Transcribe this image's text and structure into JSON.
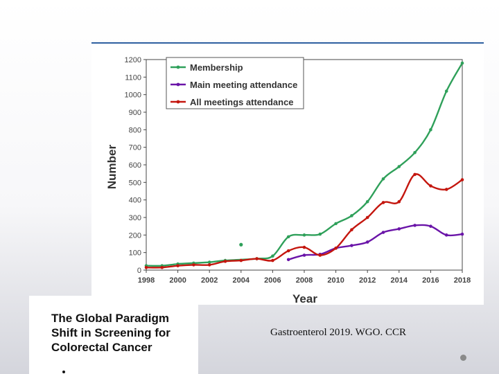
{
  "cover": {
    "title": "The Global Paradigm Shift in Screening for Colorectal Cancer"
  },
  "citation": "Gastroenterol 2019. WGO. CCR",
  "colors": {
    "membership": "#2fa05a",
    "main_meeting": "#6a14a8",
    "all_meetings": "#c4160e",
    "rule": "#2e5fa0"
  },
  "chart_data": {
    "type": "line",
    "title": "",
    "xlabel": "Year",
    "ylabel": "Number",
    "xlim": [
      1998,
      2018
    ],
    "ylim": [
      0,
      1200
    ],
    "xticks": [
      1998,
      2000,
      2002,
      2004,
      2006,
      2008,
      2010,
      2012,
      2014,
      2016,
      2018
    ],
    "yticks": [
      0,
      100,
      200,
      300,
      400,
      500,
      600,
      700,
      800,
      900,
      1000,
      1100,
      1200
    ],
    "legend_position": "top-left",
    "series": [
      {
        "name": "Membership",
        "color": "#2fa05a",
        "points": [
          [
            1998,
            25
          ],
          [
            1999,
            25
          ],
          [
            2000,
            35
          ],
          [
            2001,
            40
          ],
          [
            2002,
            45
          ],
          [
            2003,
            55
          ],
          [
            2005,
            65
          ],
          [
            2006,
            80
          ],
          [
            2007,
            190
          ],
          [
            2008,
            200
          ],
          [
            2009,
            205
          ],
          [
            2010,
            265
          ],
          [
            2011,
            310
          ],
          [
            2012,
            390
          ],
          [
            2013,
            520
          ],
          [
            2014,
            590
          ],
          [
            2015,
            670
          ],
          [
            2016,
            800
          ],
          [
            2017,
            1020
          ],
          [
            2018,
            1180
          ]
        ],
        "outliers": [
          [
            2004,
            145
          ]
        ]
      },
      {
        "name": "Main meeting attendance",
        "color": "#6a14a8",
        "points": [
          [
            2007,
            60
          ],
          [
            2008,
            85
          ],
          [
            2009,
            90
          ],
          [
            2010,
            125
          ],
          [
            2011,
            140
          ],
          [
            2012,
            160
          ],
          [
            2013,
            215
          ],
          [
            2014,
            235
          ],
          [
            2015,
            255
          ],
          [
            2016,
            250
          ],
          [
            2017,
            200
          ],
          [
            2018,
            205
          ]
        ]
      },
      {
        "name": "All meetings attendance",
        "color": "#c4160e",
        "points": [
          [
            1998,
            15
          ],
          [
            1999,
            15
          ],
          [
            2000,
            25
          ],
          [
            2001,
            30
          ],
          [
            2002,
            30
          ],
          [
            2003,
            50
          ],
          [
            2004,
            55
          ],
          [
            2005,
            65
          ],
          [
            2006,
            55
          ],
          [
            2007,
            110
          ],
          [
            2008,
            130
          ],
          [
            2009,
            85
          ],
          [
            2010,
            125
          ],
          [
            2011,
            230
          ],
          [
            2012,
            300
          ],
          [
            2013,
            385
          ],
          [
            2014,
            390
          ],
          [
            2015,
            545
          ],
          [
            2016,
            480
          ],
          [
            2017,
            460
          ],
          [
            2018,
            515
          ]
        ]
      }
    ]
  }
}
